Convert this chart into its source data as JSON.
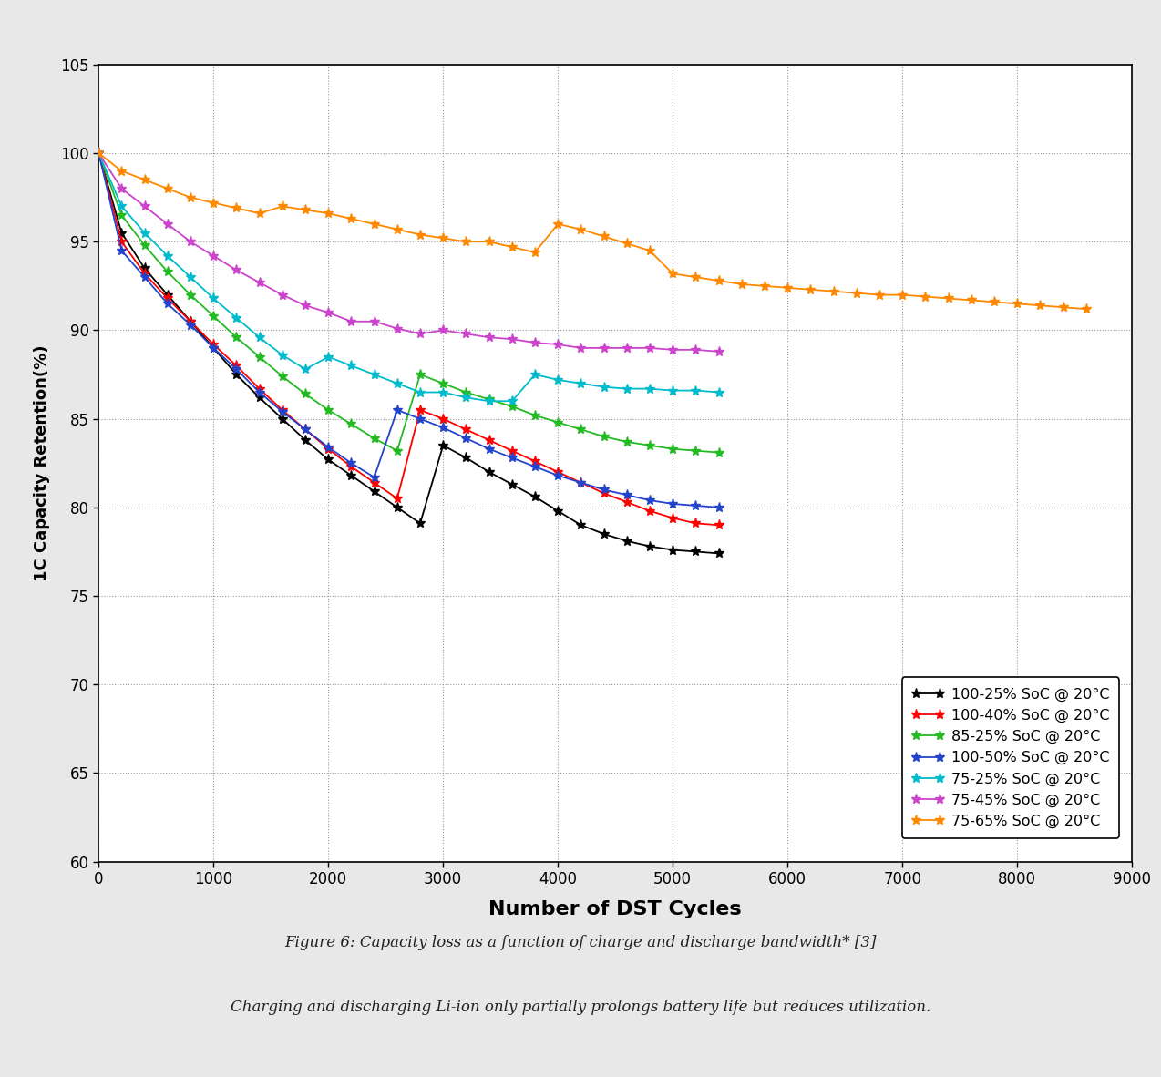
{
  "curves": {
    "100-25% SoC @ 20°C": {
      "color": "#000000",
      "x": [
        0,
        200,
        400,
        600,
        800,
        1000,
        1200,
        1400,
        1600,
        1800,
        2000,
        2200,
        2400,
        2600,
        2800,
        3000,
        3200,
        3400,
        3600,
        3800,
        4000,
        4200,
        4400,
        4600,
        4800,
        5000,
        5200,
        5400
      ],
      "y": [
        100,
        95.5,
        93.5,
        92.0,
        90.5,
        89.0,
        87.5,
        86.2,
        85.0,
        83.8,
        82.7,
        81.8,
        80.9,
        80.0,
        79.1,
        83.5,
        82.8,
        82.0,
        81.3,
        80.6,
        79.8,
        79.0,
        78.5,
        78.1,
        77.8,
        77.6,
        77.5,
        77.4
      ]
    },
    "100-40% SoC @ 20°C": {
      "color": "#ff0000",
      "x": [
        0,
        200,
        400,
        600,
        800,
        1000,
        1200,
        1400,
        1600,
        1800,
        2000,
        2200,
        2400,
        2600,
        2800,
        3000,
        3200,
        3400,
        3600,
        3800,
        4000,
        4200,
        4400,
        4600,
        4800,
        5000,
        5200,
        5400
      ],
      "y": [
        100,
        95.0,
        93.2,
        91.8,
        90.5,
        89.2,
        88.0,
        86.7,
        85.5,
        84.4,
        83.3,
        82.3,
        81.4,
        80.5,
        85.5,
        85.0,
        84.4,
        83.8,
        83.2,
        82.6,
        82.0,
        81.4,
        80.8,
        80.3,
        79.8,
        79.4,
        79.1,
        79.0
      ]
    },
    "85-25% SoC @ 20°C": {
      "color": "#22bb22",
      "x": [
        0,
        200,
        400,
        600,
        800,
        1000,
        1200,
        1400,
        1600,
        1800,
        2000,
        2200,
        2400,
        2600,
        2800,
        3000,
        3200,
        3400,
        3600,
        3800,
        4000,
        4200,
        4400,
        4600,
        4800,
        5000,
        5200,
        5400
      ],
      "y": [
        100,
        96.5,
        94.8,
        93.3,
        92.0,
        90.8,
        89.6,
        88.5,
        87.4,
        86.4,
        85.5,
        84.7,
        83.9,
        83.2,
        87.5,
        87.0,
        86.5,
        86.1,
        85.7,
        85.2,
        84.8,
        84.4,
        84.0,
        83.7,
        83.5,
        83.3,
        83.2,
        83.1
      ]
    },
    "100-50% SoC @ 20°C": {
      "color": "#2244cc",
      "x": [
        0,
        200,
        400,
        600,
        800,
        1000,
        1200,
        1400,
        1600,
        1800,
        2000,
        2200,
        2400,
        2600,
        2800,
        3000,
        3200,
        3400,
        3600,
        3800,
        4000,
        4200,
        4400,
        4600,
        4800,
        5000,
        5200,
        5400
      ],
      "y": [
        100,
        94.5,
        93.0,
        91.5,
        90.3,
        89.0,
        87.8,
        86.5,
        85.4,
        84.4,
        83.4,
        82.5,
        81.7,
        85.5,
        85.0,
        84.5,
        83.9,
        83.3,
        82.8,
        82.3,
        81.8,
        81.4,
        81.0,
        80.7,
        80.4,
        80.2,
        80.1,
        80.0
      ]
    },
    "75-25% SoC @ 20°C": {
      "color": "#00bbcc",
      "x": [
        0,
        200,
        400,
        600,
        800,
        1000,
        1200,
        1400,
        1600,
        1800,
        2000,
        2200,
        2400,
        2600,
        2800,
        3000,
        3200,
        3400,
        3600,
        3800,
        4000,
        4200,
        4400,
        4600,
        4800,
        5000,
        5200,
        5400
      ],
      "y": [
        100,
        97.0,
        95.5,
        94.2,
        93.0,
        91.8,
        90.7,
        89.6,
        88.6,
        87.8,
        88.5,
        88.0,
        87.5,
        87.0,
        86.5,
        86.5,
        86.2,
        86.0,
        86.0,
        87.5,
        87.2,
        87.0,
        86.8,
        86.7,
        86.7,
        86.6,
        86.6,
        86.5
      ]
    },
    "75-45% SoC @ 20°C": {
      "color": "#cc44cc",
      "x": [
        0,
        200,
        400,
        600,
        800,
        1000,
        1200,
        1400,
        1600,
        1800,
        2000,
        2200,
        2400,
        2600,
        2800,
        3000,
        3200,
        3400,
        3600,
        3800,
        4000,
        4200,
        4400,
        4600,
        4800,
        5000,
        5200,
        5400
      ],
      "y": [
        100,
        98.0,
        97.0,
        96.0,
        95.0,
        94.2,
        93.4,
        92.7,
        92.0,
        91.4,
        91.0,
        90.5,
        90.5,
        90.1,
        89.8,
        90.0,
        89.8,
        89.6,
        89.5,
        89.3,
        89.2,
        89.0,
        89.0,
        89.0,
        89.0,
        88.9,
        88.9,
        88.8
      ]
    },
    "75-65% SoC @ 20°C": {
      "color": "#ff8800",
      "x": [
        0,
        200,
        400,
        600,
        800,
        1000,
        1200,
        1400,
        1600,
        1800,
        2000,
        2200,
        2400,
        2600,
        2800,
        3000,
        3200,
        3400,
        3600,
        3800,
        4000,
        4200,
        4400,
        4600,
        4800,
        5000,
        5200,
        5400,
        5600,
        5800,
        6000,
        6200,
        6400,
        6600,
        6800,
        7000,
        7200,
        7400,
        7600,
        7800,
        8000,
        8200,
        8400,
        8600
      ],
      "y": [
        100,
        99.0,
        98.5,
        98.0,
        97.5,
        97.2,
        96.9,
        96.6,
        97.0,
        96.8,
        96.6,
        96.3,
        96.0,
        95.7,
        95.4,
        95.2,
        95.0,
        95.0,
        94.7,
        94.4,
        96.0,
        95.7,
        95.3,
        94.9,
        94.5,
        93.2,
        93.0,
        92.8,
        92.6,
        92.5,
        92.4,
        92.3,
        92.2,
        92.1,
        92.0,
        92.0,
        91.9,
        91.8,
        91.7,
        91.6,
        91.5,
        91.4,
        91.3,
        91.2
      ]
    }
  },
  "xlim": [
    0,
    9000
  ],
  "ylim": [
    60,
    105
  ],
  "xlabel": "Number of DST Cycles",
  "ylabel": "1C Capacity Retention(%)",
  "xticks": [
    0,
    1000,
    2000,
    3000,
    4000,
    5000,
    6000,
    7000,
    8000,
    9000
  ],
  "yticks": [
    60,
    65,
    70,
    75,
    80,
    85,
    90,
    95,
    100,
    105
  ],
  "figure_caption": "Figure 6: Capacity loss as a function of charge and discharge bandwidth* [3]",
  "figure_note": "Charging and discharging Li-ion only partially prolongs battery life but reduces utilization.",
  "bg_color": "#e8e8e8",
  "plot_bg_color": "#ffffff",
  "grid_color": "#999999"
}
